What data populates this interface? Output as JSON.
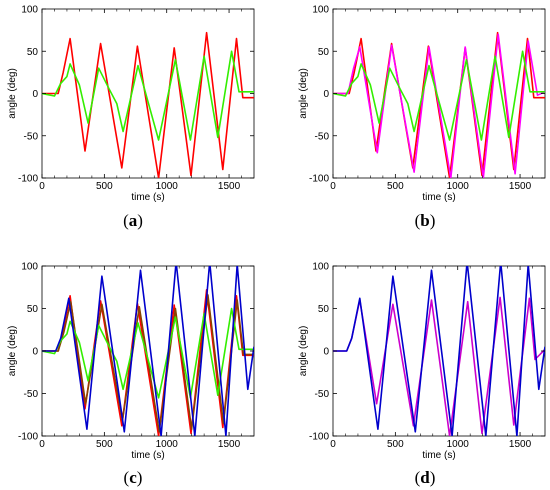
{
  "chart_data": [
    {
      "type": "line",
      "caption_letter": "a",
      "xlabel": "time (s)",
      "ylabel": "angle (deg)",
      "xlim": [
        0,
        1700
      ],
      "ylim": [
        -100,
        100
      ],
      "xticks": [
        0,
        500,
        1000,
        1500
      ],
      "minor_xticks": [
        100,
        200,
        300,
        400,
        600,
        700,
        800,
        900,
        1100,
        1200,
        1300,
        1400,
        1600
      ],
      "yticks": [
        -100,
        -50,
        0,
        50,
        100
      ],
      "grid": false,
      "series": [
        {
          "color": "#ff0000",
          "x": [
            0,
            130,
            170,
            225,
            345,
            470,
            640,
            765,
            935,
            1060,
            1195,
            1320,
            1450,
            1560,
            1610,
            1700
          ],
          "y": [
            0,
            0,
            25,
            65,
            -68,
            59,
            -88,
            56,
            -100,
            54,
            -97,
            72,
            -90,
            65,
            -5,
            -5
          ]
        },
        {
          "color": "#33ee00",
          "x": [
            0,
            100,
            150,
            200,
            225,
            300,
            370,
            455,
            540,
            600,
            650,
            770,
            935,
            1070,
            1190,
            1300,
            1410,
            1520,
            1580,
            1700
          ],
          "y": [
            0,
            -3,
            12,
            20,
            35,
            10,
            -35,
            30,
            5,
            -12,
            -45,
            33,
            -55,
            40,
            -55,
            44,
            -52,
            50,
            2,
            2
          ]
        }
      ]
    },
    {
      "type": "line",
      "caption_letter": "b",
      "xlabel": "time (s)",
      "ylabel": "angle (deg)",
      "xlim": [
        0,
        1700
      ],
      "ylim": [
        -100,
        100
      ],
      "xticks": [
        0,
        500,
        1000,
        1500
      ],
      "minor_xticks": [
        100,
        200,
        300,
        400,
        600,
        700,
        800,
        900,
        1100,
        1200,
        1300,
        1400,
        1600
      ],
      "yticks": [
        -100,
        -50,
        0,
        50,
        100
      ],
      "grid": false,
      "series": [
        {
          "color": "#ff0000",
          "x": [
            0,
            130,
            170,
            225,
            345,
            470,
            640,
            765,
            935,
            1060,
            1195,
            1320,
            1450,
            1560,
            1610,
            1700
          ],
          "y": [
            0,
            0,
            25,
            65,
            -68,
            59,
            -88,
            56,
            -100,
            54,
            -97,
            72,
            -90,
            65,
            -5,
            -5
          ]
        },
        {
          "color": "#ff00ff",
          "x": [
            0,
            120,
            165,
            215,
            355,
            470,
            650,
            770,
            945,
            1060,
            1205,
            1325,
            1460,
            1565,
            1640,
            1700
          ],
          "y": [
            0,
            0,
            30,
            55,
            -70,
            57,
            -93,
            55,
            -100,
            55,
            -100,
            70,
            -95,
            62,
            -2,
            2
          ]
        },
        {
          "color": "#33ee00",
          "x": [
            0,
            100,
            150,
            200,
            225,
            300,
            370,
            455,
            540,
            600,
            650,
            770,
            935,
            1070,
            1190,
            1300,
            1410,
            1520,
            1580,
            1700
          ],
          "y": [
            0,
            -3,
            12,
            20,
            35,
            10,
            -35,
            30,
            5,
            -12,
            -45,
            33,
            -55,
            40,
            -55,
            44,
            -52,
            50,
            2,
            2
          ]
        }
      ]
    },
    {
      "type": "line",
      "caption_letter": "c",
      "xlabel": "time (s)",
      "ylabel": "angle (deg)",
      "xlim": [
        0,
        1700
      ],
      "ylim": [
        -100,
        100
      ],
      "xticks": [
        0,
        500,
        1000,
        1500
      ],
      "minor_xticks": [
        100,
        200,
        300,
        400,
        600,
        700,
        800,
        900,
        1100,
        1200,
        1300,
        1400,
        1600
      ],
      "yticks": [
        -100,
        -50,
        0,
        50,
        100
      ],
      "grid": false,
      "series": [
        {
          "color": "#ff0000",
          "x": [
            0,
            130,
            170,
            225,
            345,
            470,
            640,
            765,
            935,
            1060,
            1195,
            1320,
            1450,
            1560,
            1610,
            1700
          ],
          "y": [
            0,
            0,
            25,
            65,
            -68,
            59,
            -88,
            56,
            -100,
            54,
            -97,
            72,
            -90,
            65,
            -5,
            -5
          ]
        },
        {
          "color": "#884400",
          "x": [
            0,
            130,
            175,
            230,
            350,
            480,
            645,
            780,
            940,
            1070,
            1200,
            1330,
            1455,
            1565,
            1615,
            1700
          ],
          "y": [
            0,
            0,
            22,
            58,
            -62,
            55,
            -82,
            52,
            -95,
            50,
            -92,
            66,
            -85,
            60,
            -4,
            -4
          ]
        },
        {
          "color": "#33ee00",
          "x": [
            0,
            100,
            150,
            200,
            225,
            300,
            370,
            455,
            540,
            600,
            650,
            770,
            935,
            1070,
            1190,
            1300,
            1410,
            1520,
            1580,
            1700
          ],
          "y": [
            0,
            -3,
            12,
            20,
            35,
            10,
            -35,
            30,
            5,
            -12,
            -45,
            33,
            -55,
            40,
            -55,
            44,
            -52,
            50,
            2,
            2
          ]
        },
        {
          "color": "#0000cc",
          "x": [
            0,
            110,
            150,
            215,
            360,
            480,
            660,
            790,
            955,
            1075,
            1225,
            1345,
            1475,
            1565,
            1650,
            1700
          ],
          "y": [
            0,
            0,
            15,
            62,
            -92,
            88,
            -95,
            95,
            -100,
            105,
            -100,
            105,
            -100,
            102,
            -45,
            5
          ]
        }
      ]
    },
    {
      "type": "line",
      "caption_letter": "d",
      "xlabel": "time (s)",
      "ylabel": "angle (deg)",
      "xlim": [
        0,
        1700
      ],
      "ylim": [
        -100,
        100
      ],
      "xticks": [
        0,
        500,
        1000,
        1500
      ],
      "minor_xticks": [
        100,
        200,
        300,
        400,
        600,
        700,
        800,
        900,
        1100,
        1200,
        1300,
        1400,
        1600
      ],
      "yticks": [
        -100,
        -50,
        0,
        50,
        100
      ],
      "grid": false,
      "series": [
        {
          "color": "#cc00cc",
          "x": [
            0,
            110,
            150,
            215,
            350,
            480,
            645,
            790,
            935,
            1080,
            1195,
            1340,
            1450,
            1575,
            1620,
            1700
          ],
          "y": [
            0,
            0,
            15,
            60,
            -62,
            55,
            -88,
            60,
            -100,
            58,
            -97,
            63,
            -87,
            62,
            -10,
            2
          ]
        },
        {
          "color": "#0000cc",
          "x": [
            0,
            110,
            150,
            215,
            360,
            480,
            660,
            790,
            955,
            1075,
            1225,
            1345,
            1475,
            1565,
            1650,
            1700
          ],
          "y": [
            0,
            0,
            15,
            62,
            -92,
            88,
            -95,
            95,
            -100,
            105,
            -100,
            105,
            -100,
            102,
            -45,
            5
          ]
        }
      ]
    }
  ]
}
